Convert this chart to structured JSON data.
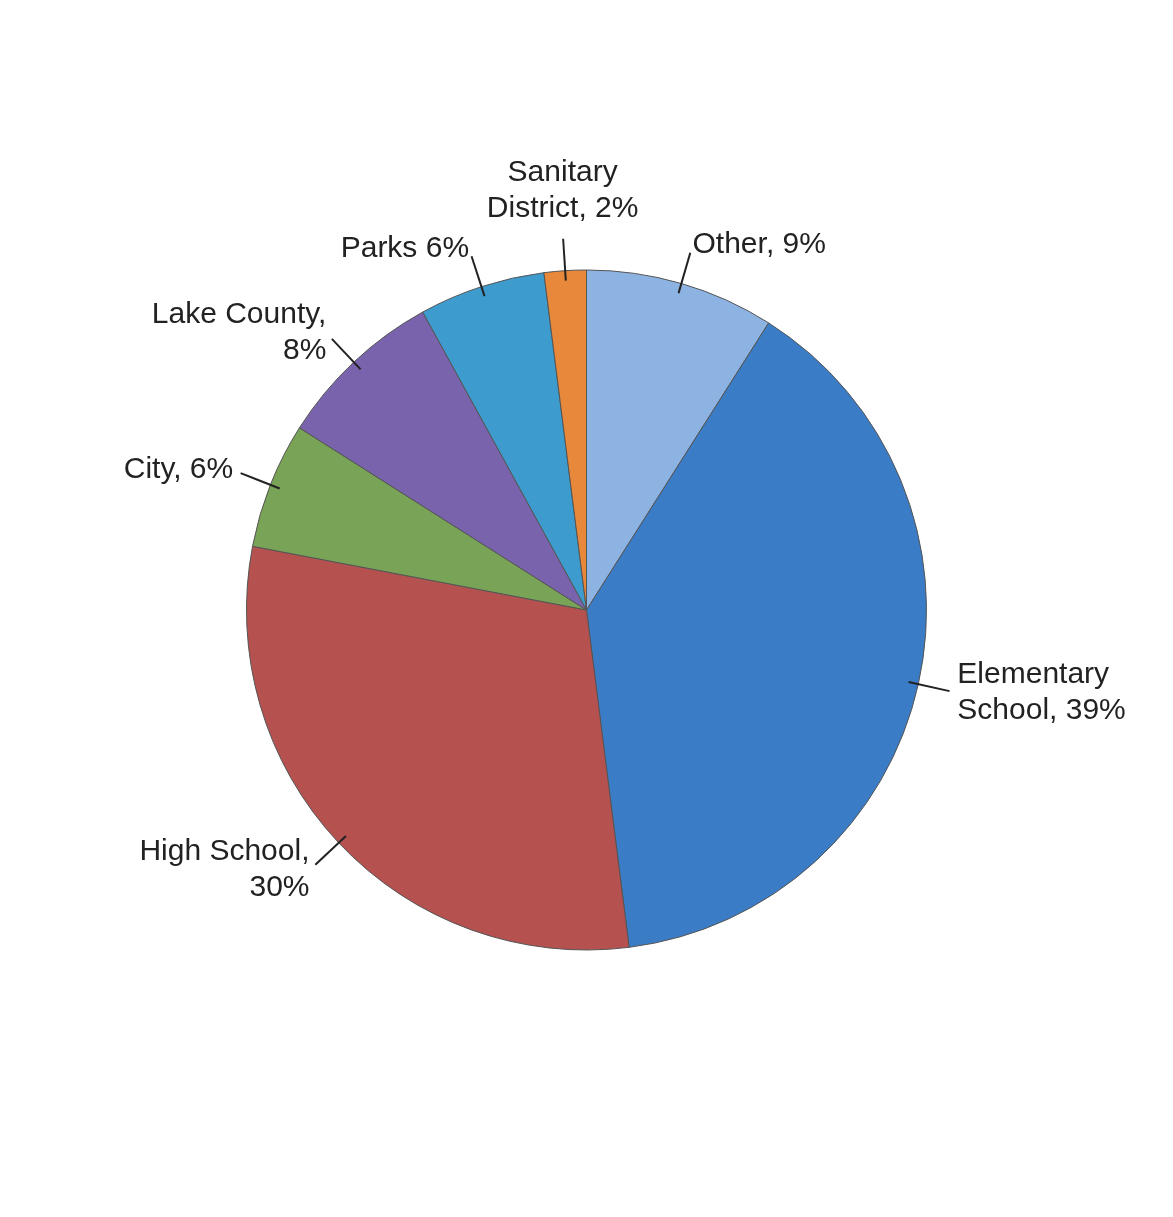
{
  "chart_data": {
    "type": "pie",
    "categories": [
      "Other, 9%",
      "Elementary School, 39%",
      "High School, 30%",
      "City, 6%",
      "Lake County, 8%",
      "Parks 6%",
      "Sanitary District, 2%"
    ],
    "values": [
      9,
      39,
      30,
      6,
      8,
      6,
      2
    ],
    "colors": [
      "#8db3e2",
      "#3b7cc6",
      "#b5514f",
      "#79a356",
      "#7a63ad",
      "#3d9ccd",
      "#e8883a"
    ],
    "legend": false
  }
}
